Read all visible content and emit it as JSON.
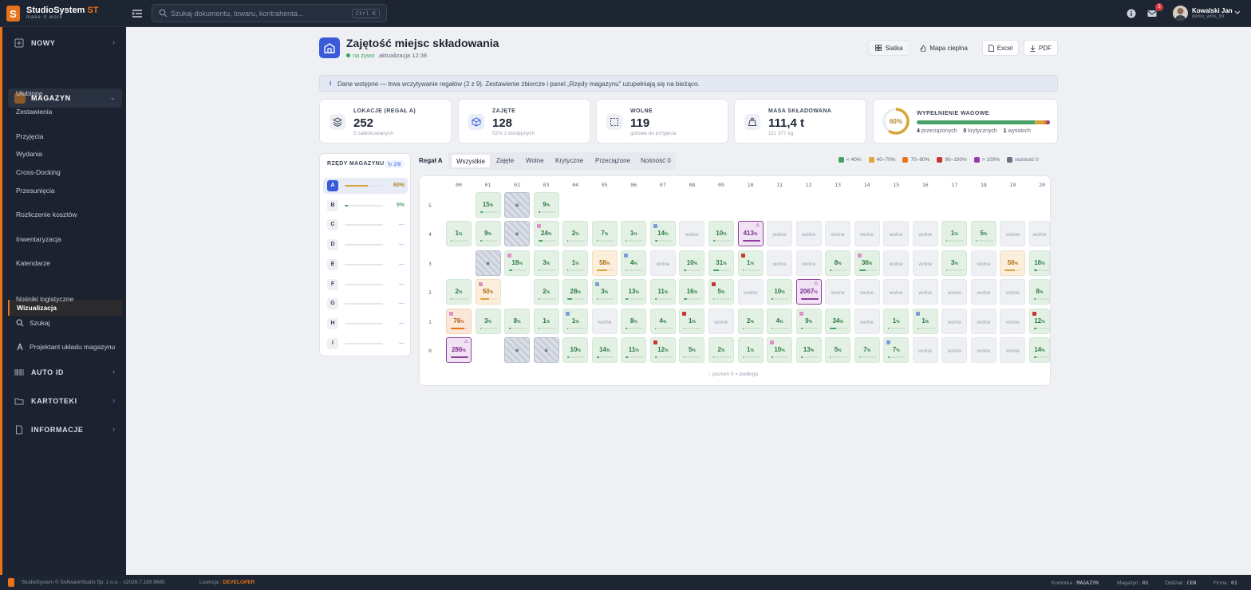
{
  "app": {
    "name_main": "StudioSystem",
    "name_accent": "ST",
    "tagline": "make it work"
  },
  "topbar": {
    "search_placeholder": "Szukaj dokumentu, towaru, kontrahenta...",
    "search_shortcut": "Ctrl K",
    "mail_badge": "5",
    "user_name": "Kowalski Jan",
    "user_login": "demo_wms_lm"
  },
  "sidebar": {
    "nowy": "NOWY",
    "magazyn": "MAGAZYN",
    "items": [
      "Ulubione",
      "Zestawienia",
      "Przyjęcia",
      "Wydania",
      "Cross-Docking",
      "Przesunięcia",
      "Rozliczenie kosztów",
      "Inwentaryzacja",
      "Kalendarze",
      "Wizualizacja",
      "Nośniki logistyczne"
    ],
    "szukaj": "Szukaj",
    "projektant": "Projektant układu magazynu",
    "autoid": "AUTO ID",
    "kartoteki": "KARTOTEKI",
    "informacje": "INFORMACJE"
  },
  "page": {
    "title": "Zajętość miejsc składowania",
    "live": "na żywo",
    "updated": "aktualizacja 12:38",
    "btn_grid": "Siatka",
    "btn_heat": "Mapa cieplna",
    "btn_excel": "Excel",
    "btn_pdf": "PDF",
    "banner": "Dane wstępne — trwa wczytywanie regałów (2 z 9). Zestawienie zbiorcze i panel „Rzędy magazynu\" uzupełniają się na bieżąco."
  },
  "kpis": {
    "lok": {
      "label": "LOKACJE (REGAŁ A)",
      "value": "252",
      "sub": "5 zablokowanych"
    },
    "zaj": {
      "label": "ZAJĘTE",
      "value": "128",
      "sub": "52% z dostępnych"
    },
    "wol": {
      "label": "WOLNE",
      "value": "119",
      "sub": "gotowe do przyjęcia"
    },
    "mas": {
      "label": "MASA SKŁADOWANA",
      "value": "111,4 t",
      "sub": "111 377 kg"
    },
    "wyp": {
      "label": "WYPEŁNIENIE WAGOWE",
      "percent": "60%",
      "fill": 0.6,
      "przeciazone": "4",
      "przeciazone_lbl": "przeciążonych",
      "krytyczne": "0",
      "krytyczne_lbl": "krytycznych",
      "wysokie": "1",
      "wysokie_lbl": "wysokich"
    }
  },
  "rows_panel": {
    "title": "RZĘDY MAGAZYNU",
    "count": "2/9",
    "rows": [
      {
        "key": "A",
        "value": "60%",
        "fill": 0.6
      },
      {
        "key": "B",
        "value": "9%",
        "fill": 0.09
      },
      {
        "key": "C",
        "value": "—",
        "fill": 0
      },
      {
        "key": "D",
        "value": "—",
        "fill": 0
      },
      {
        "key": "E",
        "value": "—",
        "fill": 0
      },
      {
        "key": "F",
        "value": "—",
        "fill": 0
      },
      {
        "key": "G",
        "value": "—",
        "fill": 0
      },
      {
        "key": "H",
        "value": "—",
        "fill": 0
      },
      {
        "key": "I",
        "value": "—",
        "fill": 0
      }
    ]
  },
  "grid": {
    "title": "Regał A",
    "filters": [
      "Wszystkie",
      "Zajęte",
      "Wolne",
      "Krytyczne",
      "Przeciążone",
      "Nośność 0"
    ],
    "legend": [
      "< 40%",
      "40–70%",
      "70–90%",
      "90–100%",
      "> 100%",
      "nośność 0"
    ],
    "legend_colors": [
      "#49a066",
      "#e0a73a",
      "#e8731a",
      "#c8372f",
      "#8e3fa0",
      "#6b7384"
    ],
    "free_label": "wolne",
    "pct_unit": "%",
    "note": "poziom 0 = podłoga",
    "columns": [
      "00",
      "01",
      "02",
      "03",
      "04",
      "05",
      "06",
      "07",
      "08",
      "09",
      "10",
      "11",
      "12",
      "13",
      "14",
      "15",
      "16",
      "17",
      "18",
      "19",
      "20"
    ],
    "levels": [
      "5",
      "4",
      "3",
      "2",
      "1",
      "0"
    ],
    "cells": [
      [
        "",
        "15",
        "L",
        "9",
        "",
        "",
        "",
        "",
        "",
        "",
        "",
        "",
        "",
        "",
        "",
        "",
        "",
        "",
        "",
        "",
        ""
      ],
      [
        "1",
        "9",
        "L",
        "24",
        "2",
        "7",
        "1",
        "14",
        "F",
        "10",
        "413",
        "F",
        "F",
        "F",
        "F",
        "F",
        "F",
        "1",
        "5",
        "F",
        "F"
      ],
      [
        "",
        "L",
        "18",
        "3",
        "1",
        "58",
        "4",
        "F",
        "10",
        "31",
        "1",
        "F",
        "F",
        "8",
        "36",
        "F",
        "F",
        "3",
        "F",
        "56",
        "16"
      ],
      [
        "2",
        "50",
        "",
        "2",
        "28",
        "3",
        "13",
        "11",
        "16",
        "5",
        "F",
        "10",
        "2067",
        "F",
        "F",
        "F",
        "F",
        "F",
        "F",
        "F",
        "8"
      ],
      [
        "76",
        "3",
        "8",
        "1",
        "1",
        "F",
        "8",
        "4",
        "1",
        "F",
        "2",
        "4",
        "9",
        "34",
        "F",
        "1",
        "1",
        "F",
        "F",
        "F",
        "12"
      ],
      [
        "286",
        "",
        "L",
        "L",
        "10",
        "14",
        "11",
        "12",
        "5",
        "2",
        "1",
        "10",
        "13",
        "5",
        "7",
        "7",
        "F",
        "F",
        "F",
        "F",
        "14"
      ]
    ]
  },
  "footer": {
    "copy": "StudioSystem © SoftwareStudio Sp. z o.o. · v2026.7.189.9685",
    "lic_lbl": "Licencja :",
    "lic": "DEVELOPER",
    "kom_lbl": "Komórka :",
    "kom": "MAGAZYN",
    "mag_lbl": "Magazyn :",
    "mag": "01",
    "odd_lbl": "Oddział :",
    "odd": "CEN",
    "fir_lbl": "Firma :",
    "fir": "01"
  }
}
